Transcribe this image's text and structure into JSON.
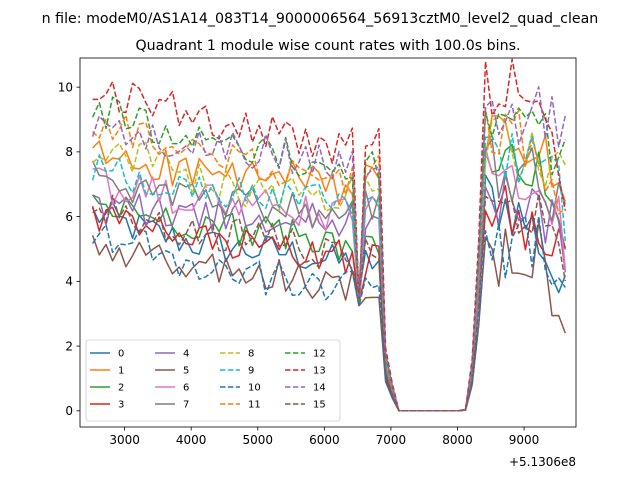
{
  "figure": {
    "suptitle": "n file: modeM0/AS1A14_083T14_9000006564_56913cztM0_level2_quad_clean"
  },
  "chart_data": {
    "type": "line",
    "title": "Quadrant 1 module wise count rates with 100.0s bins.",
    "xlabel": "",
    "ylabel": "",
    "x_offset_label": "+5.1306e8",
    "xlim": [
      2330,
      9780
    ],
    "ylim": [
      -0.5,
      10.9
    ],
    "xticks": [
      3000,
      4000,
      5000,
      6000,
      7000,
      8000,
      9000
    ],
    "yticks": [
      0,
      2,
      4,
      6,
      8,
      10
    ],
    "grid": false,
    "legend_position": "lower-left",
    "legend_columns": 4,
    "x_range": [
      2520,
      9620
    ],
    "x_step": 100,
    "gap": {
      "drop_start": 6900,
      "zero_from": 7100,
      "zero_to": 8100,
      "rise_end": 8400
    },
    "dip": {
      "x": 6520,
      "value": 3.2
    },
    "series": [
      {
        "name": "0",
        "color": "#1f77b4",
        "dashed": false,
        "before": [
          6.1,
          5.6,
          5.2,
          5.0,
          4.9,
          4.6,
          4.6
        ],
        "after": [
          6.6,
          6.3,
          5.4,
          3.3
        ]
      },
      {
        "name": "1",
        "color": "#ff7f0e",
        "dashed": false,
        "before": [
          7.9,
          7.7,
          7.4,
          7.2,
          7.2,
          6.9,
          7.2
        ],
        "after": [
          8.5,
          8.3,
          8.1,
          6.3
        ]
      },
      {
        "name": "2",
        "color": "#2ca02c",
        "dashed": false,
        "before": [
          6.4,
          6.1,
          5.8,
          5.6,
          5.4,
          5.2,
          5.3
        ],
        "after": [
          7.2,
          7.5,
          7.4,
          5.8
        ]
      },
      {
        "name": "3",
        "color": "#d62728",
        "dashed": false,
        "before": [
          6.0,
          5.6,
          5.3,
          5.1,
          4.9,
          4.8,
          4.7
        ],
        "after": [
          6.3,
          6.0,
          5.8,
          5.4
        ]
      },
      {
        "name": "4",
        "color": "#9467bd",
        "dashed": false,
        "before": [
          6.3,
          6.2,
          6.1,
          6.0,
          5.9,
          5.9,
          6.0
        ],
        "after": [
          6.4,
          6.3,
          6.5,
          4.9
        ]
      },
      {
        "name": "5",
        "color": "#8c564b",
        "dashed": false,
        "before": [
          5.0,
          4.7,
          4.5,
          4.3,
          4.1,
          3.8,
          4.0
        ],
        "after": [
          5.0,
          4.6,
          4.9,
          3.0
        ]
      },
      {
        "name": "6",
        "color": "#e377c2",
        "dashed": false,
        "before": [
          7.0,
          6.7,
          6.6,
          6.4,
          6.2,
          6.0,
          6.3
        ],
        "after": [
          7.2,
          7.6,
          7.4,
          5.2
        ]
      },
      {
        "name": "7",
        "color": "#7f7f7f",
        "dashed": false,
        "before": [
          7.2,
          6.9,
          6.6,
          6.4,
          6.3,
          6.1,
          6.4
        ],
        "after": [
          7.5,
          7.3,
          7.7,
          6.0
        ]
      },
      {
        "name": "8",
        "color": "#bcbd22",
        "dashed": true,
        "before": [
          8.2,
          7.8,
          7.2,
          6.8,
          6.7,
          6.6,
          7.0
        ],
        "after": [
          8.3,
          8.0,
          7.9,
          7.5
        ]
      },
      {
        "name": "9",
        "color": "#17becf",
        "dashed": true,
        "before": [
          7.6,
          7.2,
          6.9,
          6.8,
          6.8,
          6.4,
          6.9
        ],
        "after": [
          7.9,
          7.7,
          7.9,
          6.2
        ]
      },
      {
        "name": "10",
        "color": "#1f77b4",
        "dashed": true,
        "before": [
          5.6,
          5.1,
          4.6,
          4.3,
          4.0,
          3.8,
          4.1
        ],
        "after": [
          5.0,
          5.0,
          5.2,
          4.5
        ]
      },
      {
        "name": "11",
        "color": "#ff7f0e",
        "dashed": true,
        "before": [
          9.0,
          8.4,
          8.0,
          7.7,
          7.4,
          6.9,
          7.4
        ],
        "after": [
          8.4,
          8.5,
          8.3,
          6.2
        ]
      },
      {
        "name": "12",
        "color": "#2ca02c",
        "dashed": true,
        "before": [
          9.4,
          8.9,
          8.5,
          8.2,
          7.9,
          7.3,
          7.6
        ],
        "after": [
          8.8,
          8.8,
          8.6,
          7.8
        ]
      },
      {
        "name": "13",
        "color": "#d62728",
        "dashed": true,
        "before": [
          9.9,
          9.6,
          9.2,
          8.7,
          8.5,
          8.1,
          8.6
        ],
        "after": [
          9.9,
          10.1,
          9.9,
          5.8
        ]
      },
      {
        "name": "14",
        "color": "#9467bd",
        "dashed": true,
        "before": [
          8.7,
          8.5,
          8.3,
          8.1,
          7.9,
          7.6,
          7.9
        ],
        "after": [
          9.1,
          9.1,
          9.4,
          8.3
        ]
      },
      {
        "name": "15",
        "color": "#8c564b",
        "dashed": true,
        "before": [
          6.3,
          5.9,
          5.6,
          5.4,
          5.2,
          4.8,
          5.1
        ],
        "after": [
          6.0,
          5.9,
          6.1,
          4.9
        ]
      }
    ]
  }
}
